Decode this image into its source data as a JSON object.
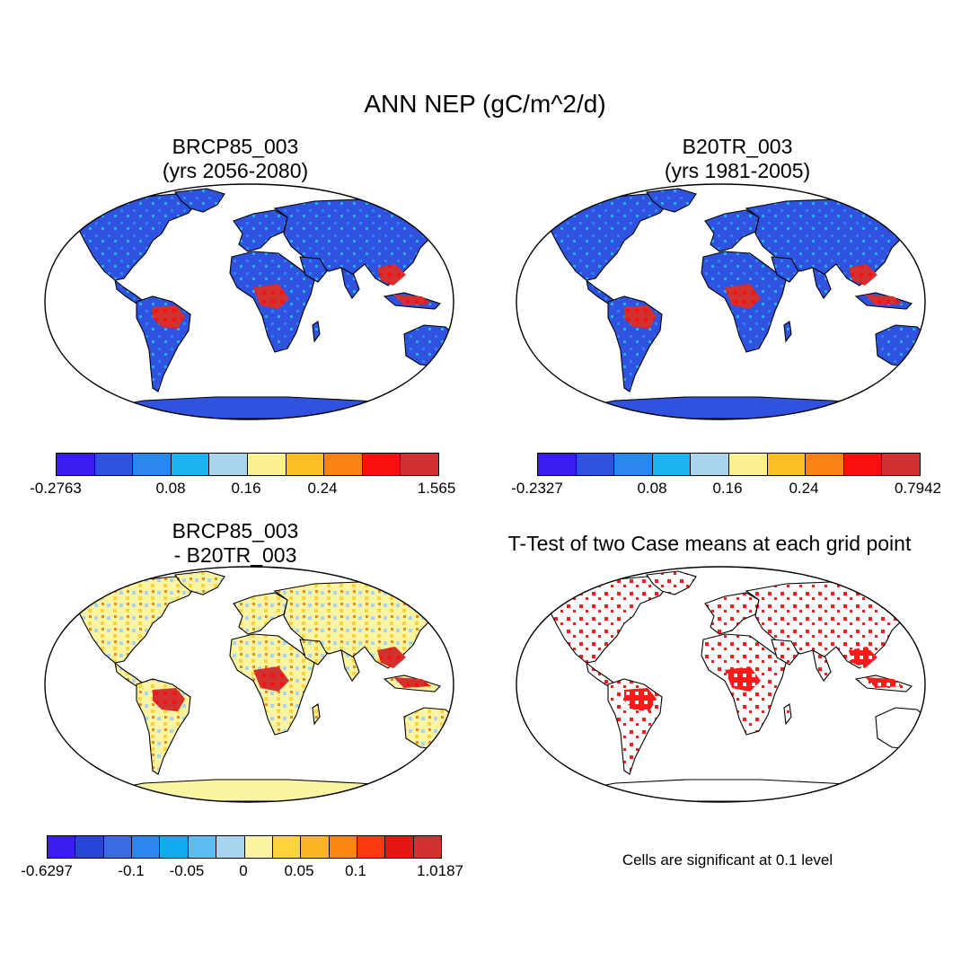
{
  "title": "ANN NEP (gC/m^2/d)",
  "palettes": {
    "main": [
      "#3b1eef",
      "#3052e0",
      "#2b86ef",
      "#1cb4f0",
      "#a9d4ef",
      "#fbf190",
      "#fcbe25",
      "#f98211",
      "#fb1010",
      "#d33030"
    ],
    "diff": [
      "#3b1eef",
      "#2845d8",
      "#3c6ae3",
      "#2b86ef",
      "#12aaf0",
      "#5fbcf0",
      "#a9d4ef",
      "#fbf5a3",
      "#fdd53a",
      "#fcb624",
      "#f88611",
      "#fa3a0c",
      "#e51712",
      "#d33030"
    ]
  },
  "panels": [
    {
      "id": "p1",
      "title_line1": "BRCP85_003",
      "title_line2": "(yrs 2056-2080)",
      "colorbar": {
        "ticks": [
          "-0.2763",
          "0.08",
          "0.16",
          "0.24",
          "1.565"
        ]
      }
    },
    {
      "id": "p2",
      "title_line1": "B20TR_003",
      "title_line2": "(yrs 1981-2005)",
      "colorbar": {
        "ticks": [
          "-0.2327",
          "0.08",
          "0.16",
          "0.24",
          "0.7942"
        ]
      }
    },
    {
      "id": "p3",
      "title_line1": "BRCP85_003",
      "title_line2": "- B20TR_003",
      "colorbar": {
        "ticks": [
          "-0.6297",
          "-0.1",
          "-0.05",
          "0",
          "0.05",
          "0.1",
          "1.0187"
        ]
      }
    },
    {
      "id": "p4",
      "title": "T-Test of two Case means at each grid point",
      "note": "Cells are significant at 0.1 level"
    }
  ]
}
